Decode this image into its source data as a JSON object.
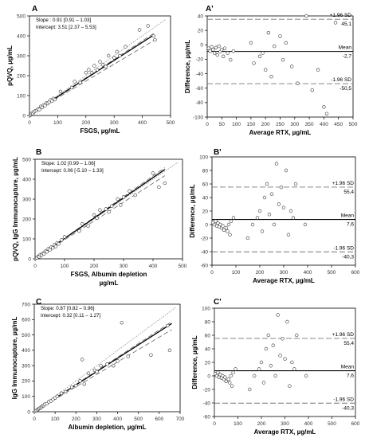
{
  "chart_data": [
    {
      "panel": "A",
      "type": "scatter",
      "xlabel": "FSGS, µg/mL",
      "ylabel": "pQVQ, µg/mL",
      "xlim": [
        0,
        500
      ],
      "ylim": [
        0,
        500
      ],
      "xticks": [
        "0",
        "100",
        "200",
        "300",
        "400",
        "500"
      ],
      "yticks": [
        "0",
        "100",
        "200",
        "300",
        "400",
        "500"
      ],
      "annotations": [
        "Slope : 0.91 [0.91 – 1.03]",
        "Intercept: 3.51 [2.37 – 5.53]"
      ],
      "fit": {
        "slope": 0.91,
        "intercept": 3.51,
        "end": 440
      },
      "points": [
        [
          3,
          2
        ],
        [
          5,
          6
        ],
        [
          8,
          10
        ],
        [
          12,
          9
        ],
        [
          15,
          18
        ],
        [
          20,
          22
        ],
        [
          25,
          25
        ],
        [
          30,
          32
        ],
        [
          35,
          30
        ],
        [
          40,
          45
        ],
        [
          45,
          40
        ],
        [
          50,
          52
        ],
        [
          55,
          50
        ],
        [
          60,
          62
        ],
        [
          65,
          60
        ],
        [
          70,
          68
        ],
        [
          75,
          78
        ],
        [
          80,
          72
        ],
        [
          85,
          85
        ],
        [
          90,
          80
        ],
        [
          110,
          120
        ],
        [
          150,
          140
        ],
        [
          160,
          170
        ],
        [
          180,
          165
        ],
        [
          200,
          215
        ],
        [
          210,
          230
        ],
        [
          220,
          215
        ],
        [
          230,
          250
        ],
        [
          240,
          230
        ],
        [
          250,
          270
        ],
        [
          260,
          255
        ],
        [
          270,
          245
        ],
        [
          280,
          300
        ],
        [
          300,
          290
        ],
        [
          310,
          320
        ],
        [
          320,
          300
        ],
        [
          340,
          345
        ],
        [
          390,
          430
        ],
        [
          420,
          450
        ],
        [
          440,
          400
        ],
        [
          445,
          380
        ]
      ]
    },
    {
      "panel": "A'",
      "type": "scatter",
      "xlabel": "Average RTX, µg/mL",
      "ylabel": "Difference, µg/mL",
      "xlim": [
        0,
        500
      ],
      "ylim": [
        -100,
        50
      ],
      "xticks": [
        "0",
        "50",
        "100",
        "150",
        "200",
        "250",
        "300",
        "350",
        "400",
        "450",
        "500"
      ],
      "yticks": [
        "-100",
        "-80",
        "-60",
        "-40",
        "-20",
        "0",
        "20",
        "40"
      ],
      "limits": {
        "upper_label": "+1.96 SD",
        "upper_value": "45,1",
        "mean_label": "Mean",
        "mean_value": "-2,7",
        "lower_label": "-1.96 SD",
        "lower_value": "-50,5"
      },
      "lines": {
        "upper": 45.1,
        "mean": -2.7,
        "lower": -50.5
      },
      "points": [
        [
          5,
          2
        ],
        [
          10,
          -2
        ],
        [
          15,
          4
        ],
        [
          20,
          0
        ],
        [
          25,
          -5
        ],
        [
          30,
          3
        ],
        [
          35,
          -8
        ],
        [
          40,
          5
        ],
        [
          45,
          -3
        ],
        [
          50,
          0
        ],
        [
          55,
          -10
        ],
        [
          60,
          2
        ],
        [
          70,
          -5
        ],
        [
          80,
          -15
        ],
        [
          90,
          -2
        ],
        [
          150,
          10
        ],
        [
          160,
          -20
        ],
        [
          180,
          -10
        ],
        [
          190,
          -5
        ],
        [
          200,
          -30
        ],
        [
          210,
          25
        ],
        [
          220,
          -40
        ],
        [
          230,
          5
        ],
        [
          250,
          20
        ],
        [
          260,
          -15
        ],
        [
          270,
          10
        ],
        [
          290,
          -25
        ],
        [
          310,
          -50
        ],
        [
          340,
          50
        ],
        [
          360,
          -60
        ],
        [
          380,
          -30
        ],
        [
          400,
          -85
        ],
        [
          410,
          -95
        ],
        [
          440,
          40
        ]
      ]
    },
    {
      "panel": "B",
      "type": "scatter",
      "xlabel": "FSGS, Albumin depletion µg/mL",
      "ylabel": "pQVQ, IgG Immunocapture, µg/mL",
      "xlim": [
        0,
        500
      ],
      "ylim": [
        0,
        500
      ],
      "xticks": [
        "0",
        "100",
        "200",
        "300",
        "400",
        "500"
      ],
      "yticks": [
        "0",
        "100",
        "200",
        "300",
        "400",
        "500"
      ],
      "annotations": [
        "Slope: 1.02 [0.99 – 1.06]",
        "Intercept: 0.06 [-5.10 – 1.33]"
      ],
      "fit": {
        "slope": 1.02,
        "intercept": 0.06,
        "end": 440
      },
      "points": [
        [
          3,
          3
        ],
        [
          6,
          5
        ],
        [
          10,
          12
        ],
        [
          14,
          10
        ],
        [
          18,
          20
        ],
        [
          22,
          18
        ],
        [
          26,
          28
        ],
        [
          30,
          25
        ],
        [
          35,
          38
        ],
        [
          40,
          35
        ],
        [
          45,
          50
        ],
        [
          50,
          45
        ],
        [
          55,
          58
        ],
        [
          60,
          55
        ],
        [
          65,
          70
        ],
        [
          70,
          62
        ],
        [
          75,
          80
        ],
        [
          80,
          75
        ],
        [
          90,
          95
        ],
        [
          100,
          110
        ],
        [
          150,
          140
        ],
        [
          160,
          175
        ],
        [
          180,
          165
        ],
        [
          200,
          220
        ],
        [
          210,
          205
        ],
        [
          220,
          245
        ],
        [
          240,
          250
        ],
        [
          250,
          235
        ],
        [
          260,
          265
        ],
        [
          280,
          300
        ],
        [
          290,
          270
        ],
        [
          300,
          310
        ],
        [
          320,
          340
        ],
        [
          340,
          320
        ],
        [
          400,
          430
        ],
        [
          420,
          360
        ],
        [
          440,
          380
        ]
      ]
    },
    {
      "panel": "B'",
      "type": "scatter",
      "xlabel": "Average RTX, µg/mL",
      "ylabel": "Difference, µg/mL",
      "xlim": [
        0,
        600
      ],
      "ylim": [
        -60,
        100
      ],
      "xticks": [
        "0",
        "100",
        "200",
        "300",
        "400",
        "500",
        "600"
      ],
      "yticks": [
        "-60",
        "-40",
        "-20",
        "0",
        "20",
        "40",
        "60",
        "80",
        "100"
      ],
      "limits": {
        "upper_label": "+1.96 SD",
        "upper_value": "55,4",
        "mean_label": "Mean",
        "mean_value": "7,6",
        "lower_label": "-1.96 SD",
        "lower_value": "-40,3"
      },
      "lines": {
        "upper": 55.4,
        "mean": 7.6,
        "lower": -40.3
      },
      "points": [
        [
          5,
          3
        ],
        [
          10,
          0
        ],
        [
          15,
          5
        ],
        [
          20,
          -2
        ],
        [
          25,
          2
        ],
        [
          30,
          -3
        ],
        [
          35,
          0
        ],
        [
          40,
          -5
        ],
        [
          45,
          -2
        ],
        [
          50,
          -8
        ],
        [
          60,
          -5
        ],
        [
          65,
          -10
        ],
        [
          70,
          0
        ],
        [
          75,
          -15
        ],
        [
          80,
          5
        ],
        [
          90,
          10
        ],
        [
          150,
          -20
        ],
        [
          170,
          0
        ],
        [
          190,
          10
        ],
        [
          200,
          20
        ],
        [
          210,
          -10
        ],
        [
          220,
          40
        ],
        [
          230,
          60
        ],
        [
          240,
          15
        ],
        [
          250,
          45
        ],
        [
          260,
          0
        ],
        [
          270,
          90
        ],
        [
          280,
          30
        ],
        [
          290,
          55
        ],
        [
          300,
          25
        ],
        [
          310,
          80
        ],
        [
          320,
          -15
        ],
        [
          330,
          20
        ],
        [
          340,
          10
        ],
        [
          350,
          60
        ],
        [
          390,
          0
        ]
      ]
    },
    {
      "panel": "C",
      "type": "scatter",
      "xlabel": "Albumin depletion, µg/mL",
      "ylabel": "IgG Immunocapture, µg/mL",
      "xlim": [
        0,
        700
      ],
      "ylim": [
        0,
        700
      ],
      "xticks": [
        "0",
        "100",
        "200",
        "300",
        "400",
        "500",
        "600",
        "700"
      ],
      "yticks": [
        "0",
        "100",
        "200",
        "300",
        "400",
        "500",
        "600",
        "700"
      ],
      "annotations": [
        "Slope: 0.87 [0.82 – 0.96]",
        "Intercept: 0.32 [0.11 – 1.27]"
      ],
      "fit": {
        "slope": 0.87,
        "intercept": 0.32,
        "end": 660
      },
      "points": [
        [
          5,
          5
        ],
        [
          10,
          8
        ],
        [
          15,
          12
        ],
        [
          20,
          18
        ],
        [
          25,
          22
        ],
        [
          30,
          25
        ],
        [
          35,
          30
        ],
        [
          40,
          38
        ],
        [
          45,
          40
        ],
        [
          50,
          48
        ],
        [
          60,
          52
        ],
        [
          70,
          65
        ],
        [
          80,
          70
        ],
        [
          90,
          80
        ],
        [
          100,
          90
        ],
        [
          110,
          100
        ],
        [
          130,
          120
        ],
        [
          150,
          130
        ],
        [
          180,
          160
        ],
        [
          200,
          170
        ],
        [
          220,
          200
        ],
        [
          230,
          340
        ],
        [
          240,
          180
        ],
        [
          260,
          250
        ],
        [
          290,
          270
        ],
        [
          300,
          260
        ],
        [
          320,
          300
        ],
        [
          350,
          310
        ],
        [
          380,
          300
        ],
        [
          400,
          330
        ],
        [
          420,
          580
        ],
        [
          450,
          360
        ],
        [
          560,
          370
        ],
        [
          640,
          560
        ],
        [
          650,
          400
        ]
      ]
    },
    {
      "panel": "C'",
      "type": "scatter",
      "xlabel": "Average RTX, µg/mL",
      "ylabel": "Difference, µg/mL",
      "xlim": [
        0,
        600
      ],
      "ylim": [
        -60,
        100
      ],
      "xticks": [
        "0",
        "100",
        "200",
        "300",
        "400",
        "500",
        "600"
      ],
      "yticks": [
        "-60",
        "-40",
        "-20",
        "0",
        "20",
        "40",
        "60",
        "80",
        "100"
      ],
      "limits": {
        "upper_label": "+1.96 SD",
        "upper_value": "55,4",
        "mean_label": "Mean",
        "mean_value": "7,6",
        "lower_label": "-1.96 SD",
        "lower_value": "-40,3"
      },
      "lines": {
        "upper": 55.4,
        "mean": 7.6,
        "lower": -40.3
      },
      "points": [
        [
          5,
          3
        ],
        [
          10,
          0
        ],
        [
          15,
          5
        ],
        [
          20,
          -2
        ],
        [
          25,
          2
        ],
        [
          30,
          -3
        ],
        [
          35,
          0
        ],
        [
          40,
          -5
        ],
        [
          45,
          -2
        ],
        [
          50,
          -8
        ],
        [
          60,
          -5
        ],
        [
          65,
          -10
        ],
        [
          70,
          0
        ],
        [
          75,
          -15
        ],
        [
          80,
          5
        ],
        [
          90,
          10
        ],
        [
          150,
          -20
        ],
        [
          170,
          0
        ],
        [
          190,
          10
        ],
        [
          200,
          20
        ],
        [
          210,
          -10
        ],
        [
          220,
          40
        ],
        [
          230,
          60
        ],
        [
          240,
          15
        ],
        [
          250,
          45
        ],
        [
          260,
          0
        ],
        [
          270,
          90
        ],
        [
          280,
          30
        ],
        [
          290,
          55
        ],
        [
          300,
          25
        ],
        [
          310,
          80
        ],
        [
          320,
          -15
        ],
        [
          330,
          20
        ],
        [
          340,
          10
        ],
        [
          350,
          60
        ],
        [
          390,
          0
        ]
      ]
    }
  ]
}
